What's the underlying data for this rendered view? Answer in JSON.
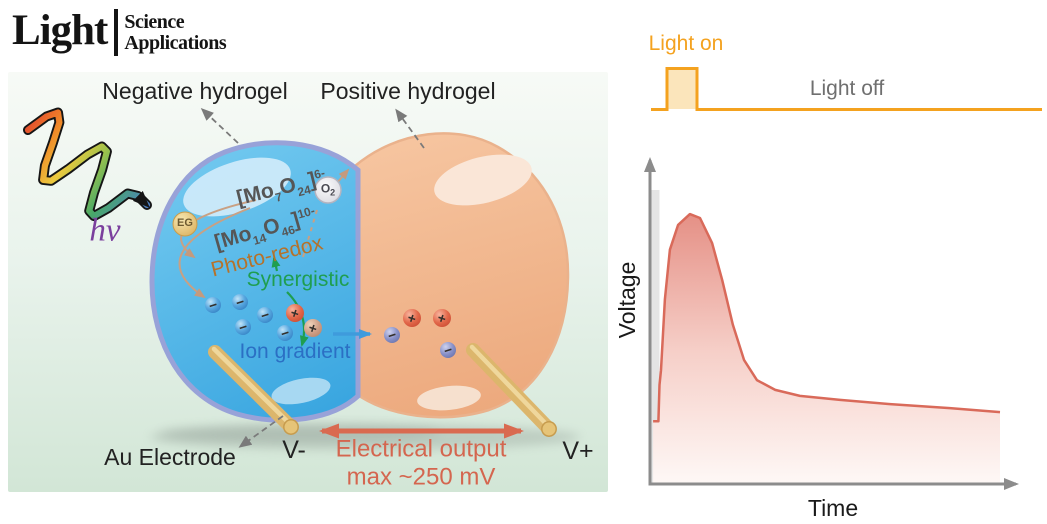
{
  "logo": {
    "name": "Light",
    "science": "Science",
    "applications": "Applications"
  },
  "diagram": {
    "negative_hydrogel": "Negative hydrogel",
    "positive_hydrogel": "Positive hydrogel",
    "photon": "hν",
    "formula_mo7": {
      "pre": "[Mo",
      "sub1": "7",
      "mid": "O",
      "sub2": "24",
      "post": "]",
      "charge": "6-"
    },
    "formula_mo14": {
      "pre": "[Mo",
      "sub1": "14",
      "mid": "O",
      "sub2": "46",
      "post": "]",
      "charge": "10-"
    },
    "eg": "EG",
    "oxygen": {
      "sym": "O",
      "sub": "2"
    },
    "photo_redox": "Photo-redox",
    "synergistic": "Synergistic",
    "ion_gradient": "Ion gradient",
    "au_electrode": "Au Electrode",
    "v_minus": "V-",
    "v_plus": "V+",
    "electrical_output_line1": "Electrical output",
    "electrical_output_line2": "max ~250 mV",
    "plus": "+",
    "minus": "−"
  },
  "waveform": {
    "light_on": "Light on",
    "light_off": "Light off"
  },
  "chart_data": {
    "type": "line",
    "title": "",
    "xlabel": "Time",
    "ylabel": "Voltage",
    "x_ticks": [],
    "y_ticks": [],
    "grid": false,
    "description": "Qualitative open-circuit voltage transient: sharp rise at light-on, peak, then decay to a slowly declining plateau",
    "light_pulse_frac": {
      "on_start": 0.04,
      "on_end": 0.12
    },
    "series": [
      {
        "name": "voltage",
        "points": [
          [
            0.003,
            0.19
          ],
          [
            0.018,
            0.19
          ],
          [
            0.021,
            0.3
          ],
          [
            0.025,
            0.345
          ],
          [
            0.036,
            0.56
          ],
          [
            0.05,
            0.71
          ],
          [
            0.073,
            0.785
          ],
          [
            0.106,
            0.818
          ],
          [
            0.134,
            0.806
          ],
          [
            0.168,
            0.73
          ],
          [
            0.196,
            0.618
          ],
          [
            0.226,
            0.482
          ],
          [
            0.257,
            0.376
          ],
          [
            0.293,
            0.315
          ],
          [
            0.344,
            0.285
          ],
          [
            0.413,
            0.267
          ],
          [
            0.525,
            0.255
          ],
          [
            0.665,
            0.242
          ],
          [
            0.832,
            0.23
          ],
          [
            0.972,
            0.218
          ]
        ]
      }
    ]
  },
  "colors": {
    "light_orange": "#F4A21F",
    "curve_red": "#D96A5A",
    "output_red": "#D4664F",
    "synergistic_green": "#1F9E50",
    "ion_blue": "#2B6FC4",
    "photo_redox_brown": "#B5722A",
    "photon_purple": "#7B3F9D",
    "gel_blue": "#45B2E6",
    "gel_orange": "#F0B48E",
    "electrode_gold": "#DCB66C",
    "axis_gray": "#8C8C8C"
  }
}
